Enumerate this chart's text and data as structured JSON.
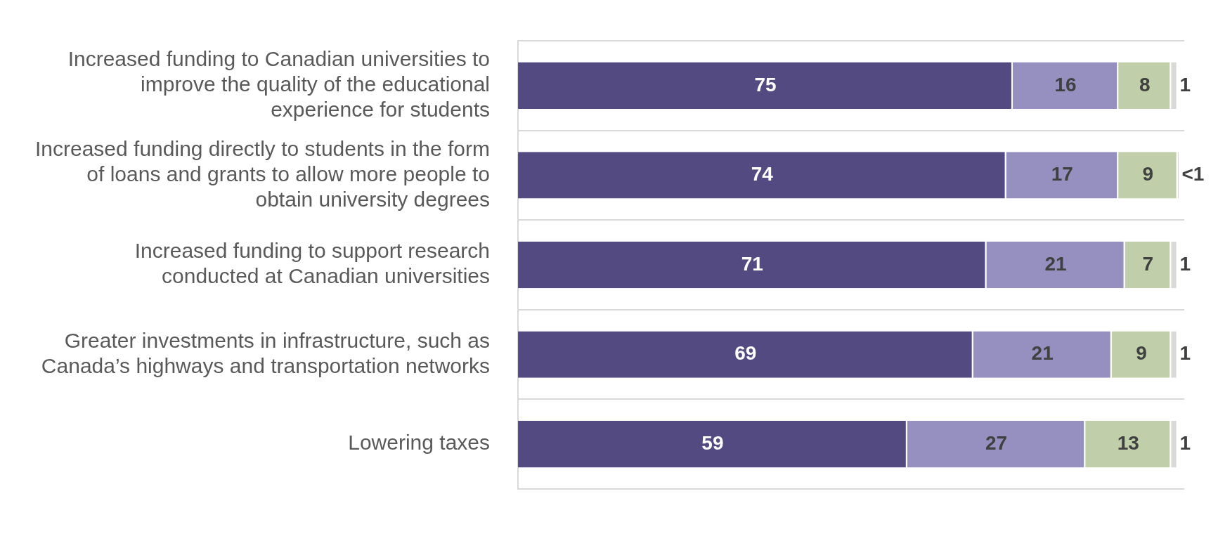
{
  "chart_data": {
    "type": "bar",
    "orientation": "horizontal",
    "stacked": true,
    "categories": [
      "Increased funding to Canadian universities to improve the quality of the educational experience for students",
      "Increased funding directly to students in the form of loans and grants to allow more people to obtain university degrees",
      "Increased funding to support research conducted at Canadian universities",
      "Greater investments in infrastructure, such as Canada’s highways and transportation networks",
      "Lowering taxes"
    ],
    "series": [
      {
        "color": "#534a82",
        "values": [
          75,
          74,
          71,
          69,
          59
        ],
        "value_labels": [
          "75",
          "74",
          "71",
          "69",
          "59"
        ]
      },
      {
        "color": "#9590c0",
        "values": [
          16,
          17,
          21,
          21,
          27
        ],
        "value_labels": [
          "16",
          "17",
          "21",
          "21",
          "27"
        ]
      },
      {
        "color": "#c0cfa9",
        "values": [
          8,
          9,
          7,
          9,
          13
        ],
        "value_labels": [
          "8",
          "9",
          "7",
          "9",
          "13"
        ]
      },
      {
        "color": "#d9d9d9",
        "values": [
          1,
          0.3,
          1,
          1,
          1
        ],
        "value_labels": [
          "1",
          "<1",
          "1",
          "1",
          "1"
        ]
      }
    ],
    "xlim": [
      0,
      101
    ],
    "tick_labels": "y",
    "grid": "y",
    "legend": false
  }
}
